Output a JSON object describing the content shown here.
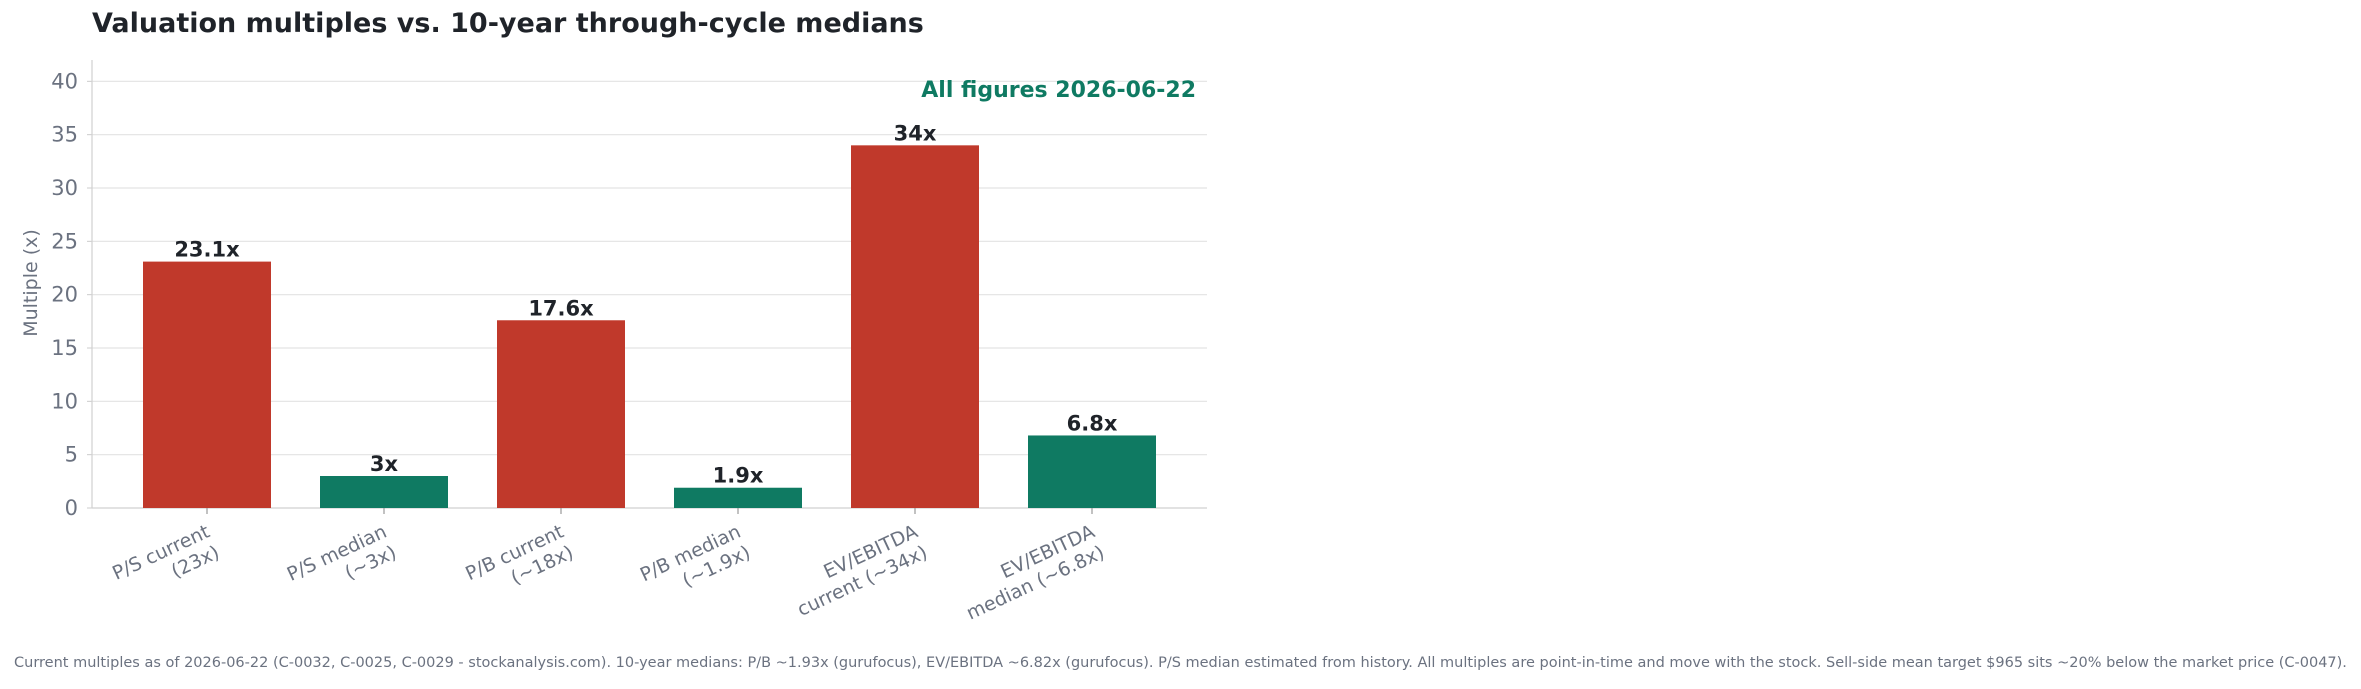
{
  "title": "Valuation multiples vs. 10-year through-cycle medians",
  "annotation": "All figures 2026-06-22",
  "footnote": "Current multiples as of 2026-06-22 (C-0032, C-0025, C-0029 - stockanalysis.com). 10-year medians: P/B ~1.93x (gurufocus), EV/EBITDA ~6.82x (gurufocus). P/S median estimated from history. All multiples are point-in-time and move with the stock. Sell-side mean target $965 sits ~20% below the market price (C-0047).",
  "colors": {
    "current": "#c0392b",
    "median": "#0f7a62",
    "annotation": "#0f7a62"
  },
  "chart_data": {
    "type": "bar",
    "title": "Valuation multiples vs. 10-year through-cycle medians",
    "ylabel": "Multiple (x)",
    "ylim": [
      0,
      42
    ],
    "yticks": [
      0,
      5,
      10,
      15,
      20,
      25,
      30,
      35,
      40
    ],
    "grid": true,
    "categories": [
      [
        "P/S current",
        "(23x)"
      ],
      [
        "P/S median",
        "(~3x)"
      ],
      [
        "P/B current",
        "(~18x)"
      ],
      [
        "P/B median",
        "(~1.9x)"
      ],
      [
        "EV/EBITDA",
        "current (~34x)"
      ],
      [
        "EV/EBITDA",
        "median (~6.8x)"
      ]
    ],
    "values": [
      23.1,
      3,
      17.6,
      1.9,
      34,
      6.8
    ],
    "data_labels": [
      "23.1x",
      "3x",
      "17.6x",
      "1.9x",
      "34x",
      "6.8x"
    ],
    "kinds": [
      "current",
      "median",
      "current",
      "median",
      "current",
      "median"
    ]
  }
}
